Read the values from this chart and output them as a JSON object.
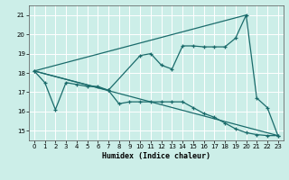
{
  "xlabel": "Humidex (Indice chaleur)",
  "background_color": "#cceee8",
  "grid_color": "#ffffff",
  "line_color": "#1a6b6b",
  "xlim": [
    -0.5,
    23.5
  ],
  "ylim": [
    14.5,
    21.5
  ],
  "yticks": [
    15,
    16,
    17,
    18,
    19,
    20,
    21
  ],
  "xticks": [
    0,
    1,
    2,
    3,
    4,
    5,
    6,
    7,
    8,
    9,
    10,
    11,
    12,
    13,
    14,
    15,
    16,
    17,
    18,
    19,
    20,
    21,
    22,
    23
  ],
  "line1_x": [
    0,
    1,
    2,
    3,
    4,
    5,
    6,
    7,
    8,
    9,
    10,
    11,
    12,
    13,
    14,
    15,
    16,
    17,
    18,
    19,
    20,
    21,
    22,
    23
  ],
  "line1_y": [
    18.1,
    17.5,
    16.1,
    17.5,
    17.4,
    17.3,
    17.3,
    17.1,
    16.4,
    16.5,
    16.5,
    16.5,
    16.5,
    16.5,
    16.5,
    16.2,
    15.9,
    15.7,
    15.4,
    15.1,
    14.9,
    14.8,
    14.75,
    14.75
  ],
  "line2_x": [
    0,
    7,
    10,
    11,
    12,
    13,
    14,
    15,
    16,
    17,
    18,
    19,
    20,
    21,
    22,
    23
  ],
  "line2_y": [
    18.1,
    17.1,
    18.9,
    19.0,
    18.4,
    18.2,
    19.4,
    19.4,
    19.35,
    19.35,
    19.35,
    19.8,
    21.0,
    16.7,
    16.2,
    14.75
  ],
  "line3_x": [
    0,
    23
  ],
  "line3_y": [
    18.1,
    14.75
  ],
  "line4_x": [
    0,
    20
  ],
  "line4_y": [
    18.1,
    21.0
  ]
}
